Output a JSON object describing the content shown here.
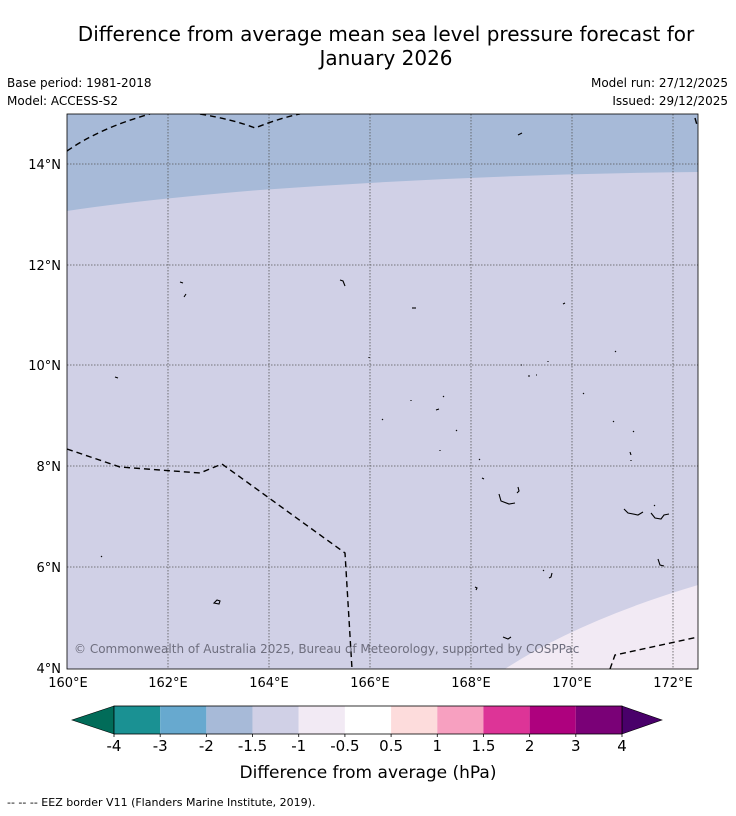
{
  "title": {
    "line1": "Difference from average mean sea level pressure forecast for",
    "line2": "January 2026"
  },
  "meta": {
    "base_period": "Base period: 1981-2018",
    "model": "Model: ACCESS-S2",
    "model_run": "Model run: 27/12/2025",
    "issued": "Issued: 29/12/2025"
  },
  "map": {
    "lat_labels": [
      "14°N",
      "12°N",
      "10°N",
      "8°N",
      "6°N",
      "4°N"
    ],
    "lon_labels": [
      "160°E",
      "162°E",
      "164°E",
      "166°E",
      "168°E",
      "170°E",
      "172°E"
    ],
    "copyright": "© Commonwealth of Australia 2025, Bureau of Meteorology, supported by COSPPac",
    "colors": {
      "band_minus1_5": "#a7bad8",
      "band_minus1": "#d0d0e6",
      "band_minus0_5": "#f2eaf4"
    }
  },
  "colorbar": {
    "labels": [
      "-4",
      "-3",
      "-2",
      "-1.5",
      "-1",
      "-0.5",
      "0.5",
      "1",
      "1.5",
      "2",
      "3",
      "4"
    ],
    "colors": [
      "#1a9193",
      "#67a9cf",
      "#a7bad8",
      "#d0d0e6",
      "#f2eaf4",
      "#ffffff",
      "#fddcdc",
      "#f7a0c0",
      "#dd3497",
      "#ae017e",
      "#7a0177"
    ],
    "low_extend_color": "#016c59",
    "high_extend_color": "#49006a",
    "title": "Difference from average (hPa)"
  },
  "footer": {
    "legend": "--  --  -- EEZ border V11 (Flanders Marine Institute, 2019)."
  }
}
